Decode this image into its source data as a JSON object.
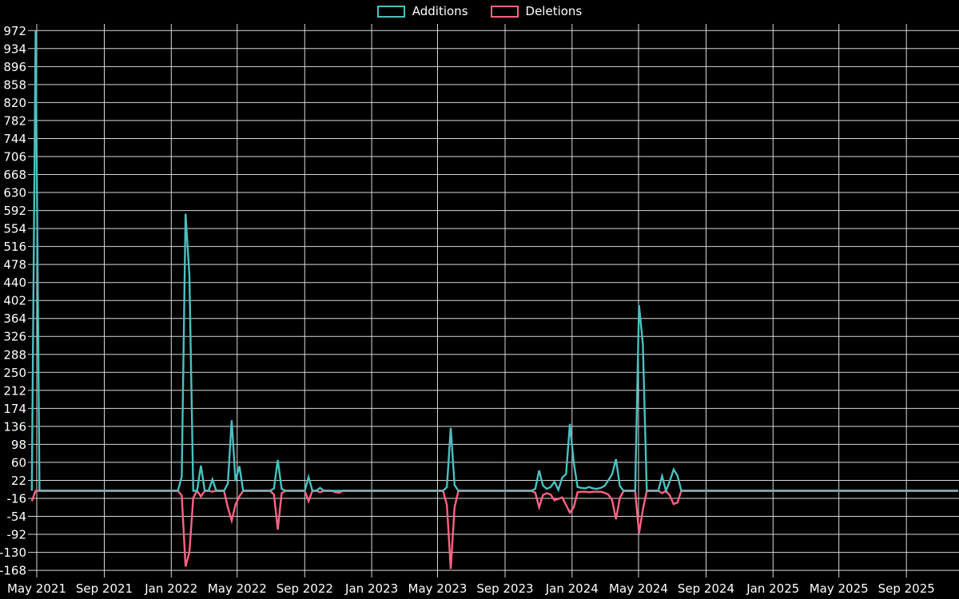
{
  "chart_data": {
    "type": "line",
    "title": "",
    "legend_position": "top-center",
    "background_color": "#000000",
    "grid": true,
    "grid_color": "#ffffff",
    "text_color": "#ffffff",
    "zero_baseline_color": "#84a7af",
    "series": [
      {
        "name": "Additions",
        "color": "#4bc0c0",
        "value_field": "additions"
      },
      {
        "name": "Deletions",
        "color": "#ff6384",
        "value_field": "deletions"
      }
    ],
    "x_axis": {
      "unit": "weekly data points",
      "ticks": [
        {
          "label": "May 2021",
          "date": "2021-05-01"
        },
        {
          "label": "Sep 2021",
          "date": "2021-09-01"
        },
        {
          "label": "Jan 2022",
          "date": "2022-01-01"
        },
        {
          "label": "May 2022",
          "date": "2022-05-01"
        },
        {
          "label": "Sep 2022",
          "date": "2022-09-01"
        },
        {
          "label": "Jan 2023",
          "date": "2023-01-01"
        },
        {
          "label": "May 2023",
          "date": "2023-05-01"
        },
        {
          "label": "Sep 2023",
          "date": "2023-09-01"
        },
        {
          "label": "Jan 2024",
          "date": "2024-01-01"
        },
        {
          "label": "May 2024",
          "date": "2024-05-01"
        },
        {
          "label": "Sep 2024",
          "date": "2024-09-01"
        },
        {
          "label": "Jan 2025",
          "date": "2025-01-01"
        },
        {
          "label": "May 2025",
          "date": "2025-05-01"
        },
        {
          "label": "Sep 2025",
          "date": "2025-09-01"
        }
      ]
    },
    "y_axis": {
      "tick_step": 38,
      "min": -168,
      "max": 972,
      "ticks": [
        972,
        934,
        896,
        858,
        820,
        782,
        744,
        706,
        668,
        630,
        592,
        554,
        516,
        478,
        440,
        402,
        364,
        326,
        288,
        250,
        212,
        174,
        136,
        98,
        60,
        22,
        -16,
        -54,
        -92,
        -130,
        -168
      ]
    },
    "sampling": {
      "interval": "weekly",
      "start": "2021-04-22",
      "end": "2025-12-04",
      "default_additions": 0,
      "default_deletions": 0,
      "note": "weeks not listed in events are zero for both series"
    },
    "events": [
      {
        "date": "2021-04-22",
        "additions": 0,
        "deletions": -22
      },
      {
        "date": "2021-04-29",
        "additions": 972,
        "deletions": 0
      },
      {
        "date": "2022-01-20",
        "additions": 30,
        "deletions": -10
      },
      {
        "date": "2022-01-27",
        "additions": 585,
        "deletions": -160
      },
      {
        "date": "2022-02-03",
        "additions": 455,
        "deletions": -130
      },
      {
        "date": "2022-02-10",
        "additions": 0,
        "deletions": -15
      },
      {
        "date": "2022-02-24",
        "additions": 53,
        "deletions": -12
      },
      {
        "date": "2022-03-17",
        "additions": 24,
        "deletions": -2
      },
      {
        "date": "2022-04-14",
        "additions": 15,
        "deletions": -35
      },
      {
        "date": "2022-04-21",
        "additions": 149,
        "deletions": -63
      },
      {
        "date": "2022-04-28",
        "additions": 20,
        "deletions": -29
      },
      {
        "date": "2022-05-05",
        "additions": 52,
        "deletions": -12
      },
      {
        "date": "2022-07-07",
        "additions": 5,
        "deletions": -8
      },
      {
        "date": "2022-07-14",
        "additions": 65,
        "deletions": -82
      },
      {
        "date": "2022-07-21",
        "additions": 4,
        "deletions": -5
      },
      {
        "date": "2022-09-08",
        "additions": 29,
        "deletions": -22
      },
      {
        "date": "2022-09-29",
        "additions": 6,
        "deletions": -3
      },
      {
        "date": "2022-10-27",
        "additions": 0,
        "deletions": -3
      },
      {
        "date": "2022-11-03",
        "additions": 0,
        "deletions": -4
      },
      {
        "date": "2023-05-18",
        "additions": 8,
        "deletions": -30
      },
      {
        "date": "2023-05-25",
        "additions": 133,
        "deletions": -165
      },
      {
        "date": "2023-06-01",
        "additions": 12,
        "deletions": -35
      },
      {
        "date": "2023-10-26",
        "additions": 4,
        "deletions": -4
      },
      {
        "date": "2023-11-02",
        "additions": 43,
        "deletions": -35
      },
      {
        "date": "2023-11-09",
        "additions": 11,
        "deletions": -9
      },
      {
        "date": "2023-11-16",
        "additions": 4,
        "deletions": -5
      },
      {
        "date": "2023-11-23",
        "additions": 8,
        "deletions": -8
      },
      {
        "date": "2023-11-30",
        "additions": 19,
        "deletions": -20
      },
      {
        "date": "2023-12-07",
        "additions": 2,
        "deletions": -17
      },
      {
        "date": "2023-12-14",
        "additions": 28,
        "deletions": -14
      },
      {
        "date": "2023-12-21",
        "additions": 35,
        "deletions": -30
      },
      {
        "date": "2023-12-28",
        "additions": 141,
        "deletions": -46
      },
      {
        "date": "2024-01-04",
        "additions": 60,
        "deletions": -35
      },
      {
        "date": "2024-01-11",
        "additions": 8,
        "deletions": -3
      },
      {
        "date": "2024-01-18",
        "additions": 6,
        "deletions": -2
      },
      {
        "date": "2024-01-25",
        "additions": 5,
        "deletions": -2
      },
      {
        "date": "2024-02-01",
        "additions": 8,
        "deletions": -3
      },
      {
        "date": "2024-02-08",
        "additions": 5,
        "deletions": -2
      },
      {
        "date": "2024-02-15",
        "additions": 4,
        "deletions": -2
      },
      {
        "date": "2024-02-22",
        "additions": 6,
        "deletions": -2
      },
      {
        "date": "2024-02-29",
        "additions": 10,
        "deletions": -4
      },
      {
        "date": "2024-03-07",
        "additions": 22,
        "deletions": -8
      },
      {
        "date": "2024-03-14",
        "additions": 35,
        "deletions": -20
      },
      {
        "date": "2024-03-21",
        "additions": 67,
        "deletions": -60
      },
      {
        "date": "2024-03-28",
        "additions": 10,
        "deletions": -15
      },
      {
        "date": "2024-05-02",
        "additions": 392,
        "deletions": -90
      },
      {
        "date": "2024-05-09",
        "additions": 310,
        "deletions": -40
      },
      {
        "date": "2024-06-13",
        "additions": 31,
        "deletions": -5
      },
      {
        "date": "2024-06-27",
        "additions": 20,
        "deletions": -10
      },
      {
        "date": "2024-07-04",
        "additions": 45,
        "deletions": -28
      },
      {
        "date": "2024-07-11",
        "additions": 32,
        "deletions": -25
      }
    ]
  }
}
